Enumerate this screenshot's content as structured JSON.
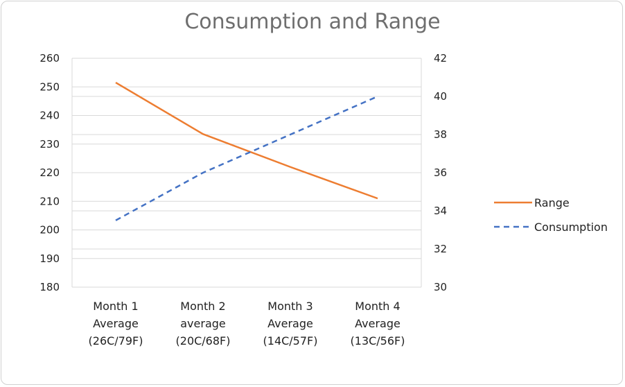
{
  "chart_data": {
    "type": "line",
    "title": "Consumption and Range",
    "categories": [
      [
        "Month 1",
        "Average",
        "(26C/79F)"
      ],
      [
        "Month 2",
        "average",
        "(20C/68F)"
      ],
      [
        "Month 3",
        "Average",
        "(14C/57F)"
      ],
      [
        "Month 4",
        "Average",
        "(13C/56F)"
      ]
    ],
    "series": [
      {
        "name": "Range",
        "axis": "left",
        "color": "#ED7D31",
        "dash": "solid",
        "values": [
          251.5,
          233.5,
          222,
          211
        ]
      },
      {
        "name": "Consumption",
        "axis": "right",
        "color": "#4472C4",
        "dash": "dashed",
        "values": [
          33.5,
          36,
          38,
          40
        ]
      }
    ],
    "y_left": {
      "min": 180,
      "max": 260,
      "ticks": [
        180,
        190,
        200,
        210,
        220,
        230,
        240,
        250,
        260
      ]
    },
    "y_right": {
      "min": 30,
      "max": 42,
      "ticks": [
        30,
        32,
        34,
        36,
        38,
        40,
        42
      ]
    },
    "grid": true,
    "legend_position": "right"
  }
}
